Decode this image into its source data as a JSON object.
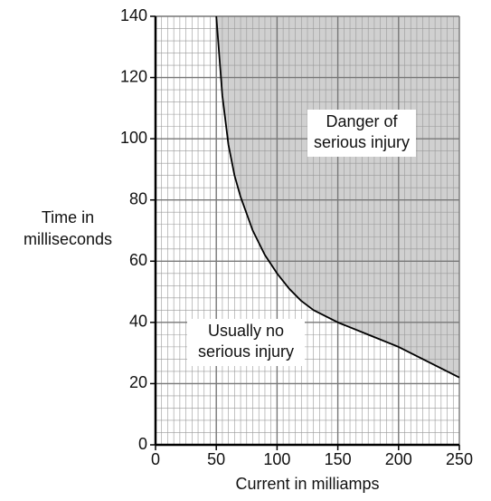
{
  "chart_data": {
    "type": "line",
    "x": [
      50,
      55,
      60,
      65,
      70,
      80,
      90,
      100,
      110,
      120,
      130,
      150,
      175,
      200,
      225,
      250
    ],
    "series": [
      {
        "color": "#000000",
        "values": [
          140,
          114,
          98,
          88,
          81,
          70,
          62,
          56,
          51,
          47,
          44,
          40,
          36,
          32,
          27,
          22
        ]
      }
    ],
    "fill_above": "#d0d0d0",
    "xlim": [
      0,
      250
    ],
    "ylim": [
      0,
      140
    ],
    "xticks": [
      0,
      50,
      100,
      150,
      200,
      250
    ],
    "yticks": [
      0,
      20,
      40,
      60,
      80,
      100,
      120,
      140
    ],
    "grid": true,
    "xlabel": "Current in milliamps",
    "ylabel": [
      "Time in",
      "milliseconds"
    ],
    "annotations": [
      {
        "text": [
          "Danger of",
          "serious injury"
        ]
      },
      {
        "text": [
          "Usually no",
          "serious injury"
        ]
      }
    ]
  }
}
